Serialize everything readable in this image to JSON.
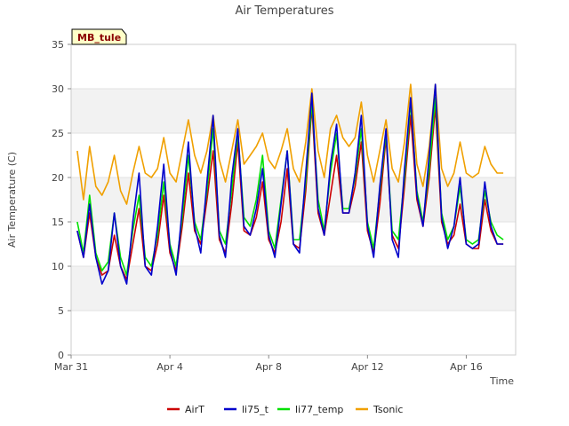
{
  "chart_data": {
    "type": "line",
    "title": "Air Temperatures",
    "xlabel": "Time",
    "ylabel": "Air Temperature (C)",
    "site_label": "MB_tule",
    "xlim": [
      "2023-03-31",
      "2023-04-18"
    ],
    "ylim": [
      0,
      35
    ],
    "yticks": [
      0,
      5,
      10,
      15,
      20,
      25,
      30,
      35
    ],
    "xticks": [
      {
        "date": "2023-03-31",
        "label": "Mar 31"
      },
      {
        "date": "2023-04-04",
        "label": "Apr 4"
      },
      {
        "date": "2023-04-08",
        "label": "Apr 8"
      },
      {
        "date": "2023-04-12",
        "label": "Apr 12"
      },
      {
        "date": "2023-04-16",
        "label": "Apr 16"
      }
    ],
    "grid": true,
    "legend_position": "bottom",
    "x": [
      "2023-03-31 06:00",
      "2023-03-31 12:00",
      "2023-03-31 18:00",
      "2023-04-01 00:00",
      "2023-04-01 06:00",
      "2023-04-01 12:00",
      "2023-04-01 18:00",
      "2023-04-02 00:00",
      "2023-04-02 06:00",
      "2023-04-02 12:00",
      "2023-04-02 18:00",
      "2023-04-03 00:00",
      "2023-04-03 06:00",
      "2023-04-03 12:00",
      "2023-04-03 18:00",
      "2023-04-04 00:00",
      "2023-04-04 06:00",
      "2023-04-04 12:00",
      "2023-04-04 18:00",
      "2023-04-05 00:00",
      "2023-04-05 06:00",
      "2023-04-05 12:00",
      "2023-04-05 18:00",
      "2023-04-06 00:00",
      "2023-04-06 06:00",
      "2023-04-06 12:00",
      "2023-04-06 18:00",
      "2023-04-07 00:00",
      "2023-04-07 06:00",
      "2023-04-07 12:00",
      "2023-04-07 18:00",
      "2023-04-08 00:00",
      "2023-04-08 06:00",
      "2023-04-08 12:00",
      "2023-04-08 18:00",
      "2023-04-09 00:00",
      "2023-04-09 06:00",
      "2023-04-09 12:00",
      "2023-04-09 18:00",
      "2023-04-10 00:00",
      "2023-04-10 06:00",
      "2023-04-10 12:00",
      "2023-04-10 18:00",
      "2023-04-11 00:00",
      "2023-04-11 06:00",
      "2023-04-11 12:00",
      "2023-04-11 18:00",
      "2023-04-12 00:00",
      "2023-04-12 06:00",
      "2023-04-12 12:00",
      "2023-04-12 18:00",
      "2023-04-13 00:00",
      "2023-04-13 06:00",
      "2023-04-13 12:00",
      "2023-04-13 18:00",
      "2023-04-14 00:00",
      "2023-04-14 06:00",
      "2023-04-14 12:00",
      "2023-04-14 18:00",
      "2023-04-15 00:00",
      "2023-04-15 06:00",
      "2023-04-15 12:00",
      "2023-04-15 18:00",
      "2023-04-16 00:00",
      "2023-04-16 06:00",
      "2023-04-16 12:00",
      "2023-04-16 18:00",
      "2023-04-17 00:00",
      "2023-04-17 06:00",
      "2023-04-17 12:00"
    ],
    "series": [
      {
        "name": "AirT",
        "color": "#cc0000",
        "values": [
          14.0,
          11.0,
          16.0,
          11.0,
          9.0,
          9.5,
          13.5,
          10.0,
          8.5,
          12.5,
          16.5,
          10.0,
          9.5,
          12.5,
          18.0,
          11.5,
          9.5,
          14.5,
          20.5,
          14.0,
          12.5,
          17.5,
          23.0,
          13.0,
          11.5,
          17.0,
          24.0,
          14.0,
          13.5,
          15.5,
          19.5,
          13.0,
          11.5,
          15.0,
          21.0,
          12.5,
          12.0,
          18.5,
          28.0,
          16.0,
          13.5,
          18.0,
          22.5,
          16.0,
          16.0,
          19.0,
          24.0,
          14.0,
          11.5,
          17.0,
          24.5,
          13.5,
          12.0,
          19.0,
          27.0,
          17.5,
          14.5,
          20.0,
          28.0,
          15.0,
          12.5,
          13.5,
          17.0,
          12.5,
          12.0,
          12.0,
          17.5,
          14.0,
          12.5,
          12.5
        ]
      },
      {
        "name": "li75_t",
        "color": "#0000cc",
        "values": [
          14.0,
          11.0,
          17.0,
          11.0,
          8.0,
          9.5,
          16.0,
          10.0,
          8.0,
          15.0,
          20.5,
          10.0,
          9.0,
          14.5,
          21.5,
          12.0,
          9.0,
          16.5,
          24.0,
          14.5,
          11.5,
          19.5,
          27.0,
          13.5,
          11.0,
          20.0,
          25.5,
          14.5,
          13.5,
          16.5,
          21.0,
          13.5,
          11.0,
          17.0,
          23.0,
          12.5,
          11.5,
          20.5,
          29.5,
          16.5,
          13.5,
          21.5,
          26.0,
          16.0,
          16.0,
          20.5,
          27.0,
          14.5,
          11.0,
          19.0,
          25.5,
          13.0,
          11.0,
          21.0,
          29.0,
          18.0,
          14.5,
          22.5,
          30.5,
          15.5,
          12.0,
          14.5,
          20.0,
          12.5,
          12.0,
          12.5,
          19.5,
          14.5,
          12.5,
          12.5
        ]
      },
      {
        "name": "li77_temp",
        "color": "#00e000",
        "values": [
          15.0,
          11.5,
          18.0,
          11.5,
          9.5,
          10.5,
          16.0,
          11.0,
          9.0,
          14.0,
          18.0,
          11.0,
          10.0,
          13.5,
          19.5,
          12.5,
          10.0,
          15.5,
          22.5,
          15.0,
          13.0,
          18.5,
          25.5,
          14.0,
          12.5,
          18.5,
          25.0,
          15.5,
          14.5,
          17.5,
          22.5,
          14.0,
          12.0,
          17.5,
          23.0,
          13.0,
          13.0,
          19.5,
          28.5,
          17.5,
          14.0,
          20.5,
          25.0,
          16.5,
          16.5,
          20.0,
          25.5,
          15.0,
          12.0,
          18.5,
          25.0,
          14.0,
          13.0,
          20.0,
          28.5,
          18.5,
          15.0,
          21.0,
          29.0,
          16.0,
          13.0,
          14.5,
          19.0,
          13.0,
          12.5,
          13.0,
          18.5,
          15.0,
          13.5,
          13.0
        ]
      },
      {
        "name": "Tsonic",
        "color": "#f0a000",
        "values": [
          23.0,
          17.5,
          23.5,
          19.0,
          18.0,
          19.5,
          22.5,
          18.5,
          17.0,
          20.5,
          23.5,
          20.5,
          20.0,
          21.0,
          24.5,
          20.5,
          19.5,
          23.0,
          26.5,
          22.5,
          20.5,
          23.0,
          27.0,
          22.0,
          19.5,
          23.0,
          26.5,
          21.5,
          22.5,
          23.5,
          25.0,
          22.0,
          21.0,
          23.0,
          25.5,
          21.0,
          19.5,
          24.0,
          30.0,
          23.0,
          20.0,
          25.5,
          27.0,
          24.5,
          23.5,
          24.5,
          28.5,
          22.5,
          19.5,
          23.0,
          26.5,
          21.0,
          19.5,
          24.0,
          30.5,
          21.5,
          19.0,
          23.5,
          30.5,
          21.0,
          19.0,
          20.5,
          24.0,
          20.5,
          20.0,
          20.5,
          23.5,
          21.5,
          20.5,
          20.5
        ]
      }
    ]
  }
}
